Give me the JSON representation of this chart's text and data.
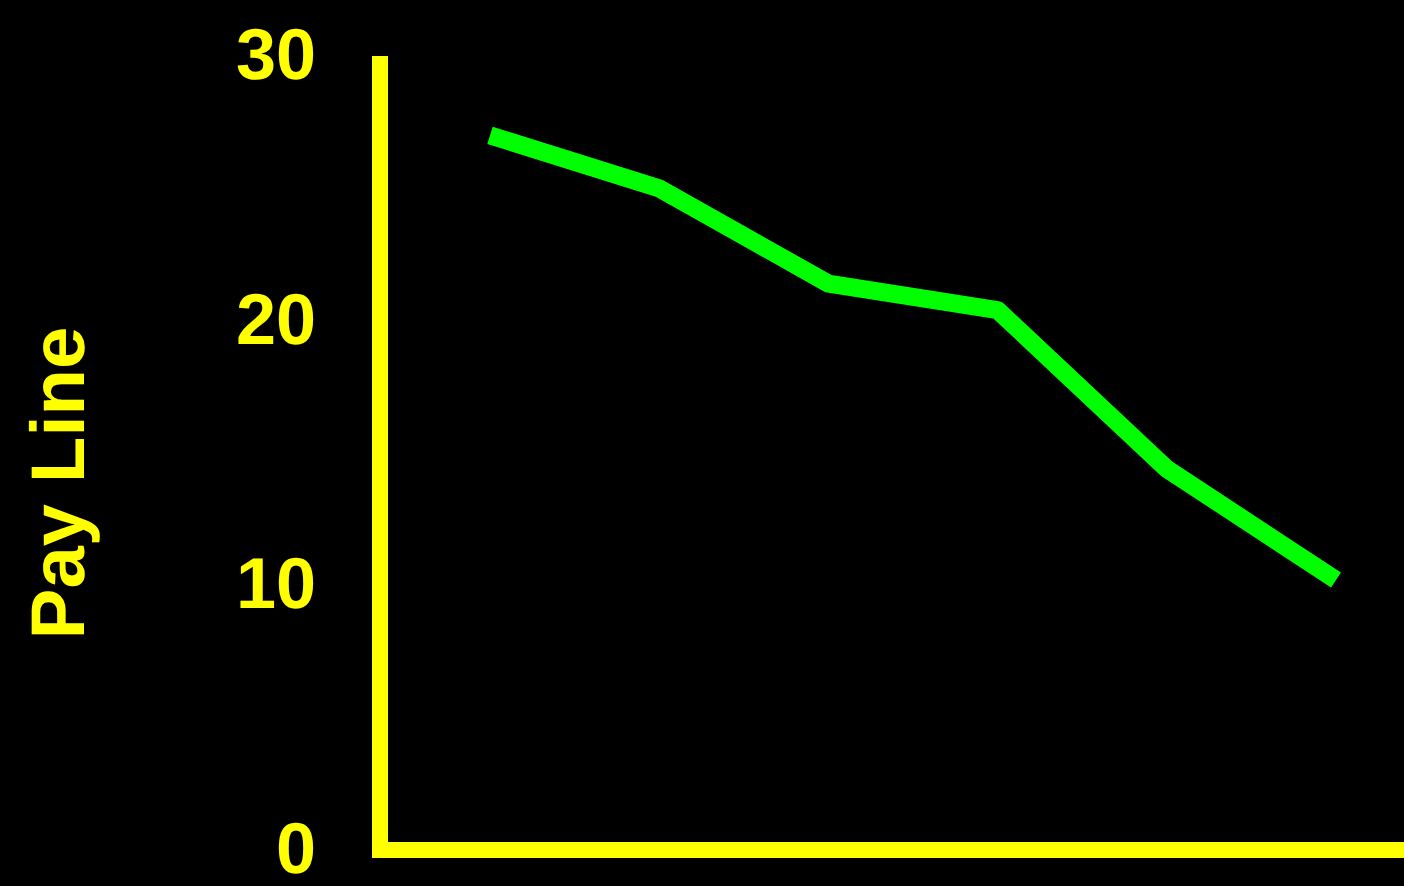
{
  "chart_data": {
    "type": "line",
    "ylabel": "Pay Line",
    "categories": [
      null,
      null,
      null,
      null,
      null,
      null
    ],
    "series": [
      {
        "color": "#00ff00",
        "values": [
          27.0,
          25.0,
          21.4,
          20.4,
          14.4,
          10.2
        ]
      }
    ],
    "ylim": [
      0,
      30
    ],
    "yticks": [
      0,
      10,
      20,
      30
    ],
    "marker": "none",
    "line_style": "solid"
  }
}
